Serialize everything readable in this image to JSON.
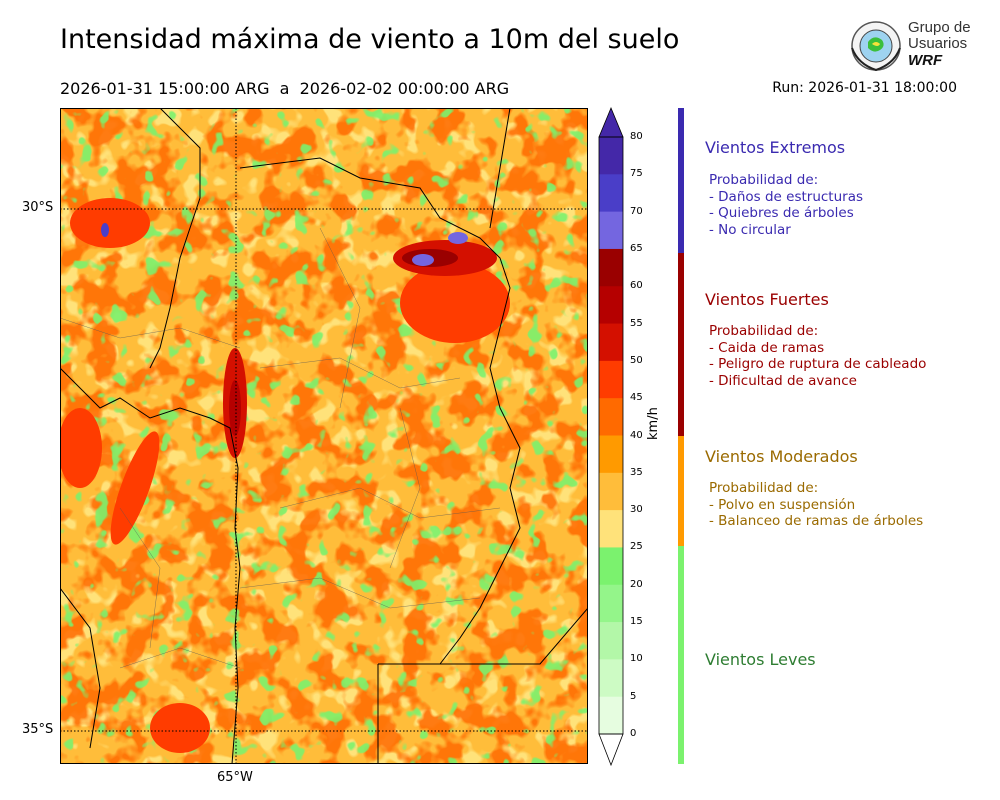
{
  "header": {
    "title": "Intensidad máxima de viento a 10m del suelo",
    "period": "2026-01-31 15:00:00 ARG  a  2026-02-02 00:00:00 ARG",
    "run": "Run: 2026-01-31 18:00:00"
  },
  "logo": {
    "line1": "Grupo de",
    "line2": "Usuarios",
    "line3": "WRF"
  },
  "map": {
    "lat_labels": [
      "30°S",
      "35°S"
    ],
    "lon_labels": [
      "65°W"
    ]
  },
  "colorbar": {
    "unit": "km/h",
    "ticks": [
      "80",
      "75",
      "70",
      "65",
      "60",
      "55",
      "50",
      "45",
      "40",
      "35",
      "30",
      "25",
      "20",
      "15",
      "10",
      "5",
      "0"
    ],
    "colors": [
      "#4428a8",
      "#4a3ec8",
      "#7466e0",
      "#9a0000",
      "#b50000",
      "#d41000",
      "#ff3c00",
      "#ff6a00",
      "#ff9a00",
      "#ffbd3a",
      "#ffe27a",
      "#7bf26e",
      "#94f58a",
      "#b3f7a8",
      "#cdfbc4",
      "#e6fde0"
    ]
  },
  "categories": [
    {
      "title": "Vientos Extremos",
      "color": "#3a2ab0",
      "lines": [
        "Probabilidad de:",
        "- Daños de estructuras",
        "- Quiebres de árboles",
        "- No circular"
      ]
    },
    {
      "title": "Vientos Fuertes",
      "color": "#9a0000",
      "lines": [
        "Probabilidad de:",
        "- Caida de ramas",
        "- Peligro de ruptura de cableado",
        "- Dificultad de avance"
      ]
    },
    {
      "title": "Vientos Moderados",
      "color": "#ff9a00",
      "text_color": "#9a6a00",
      "lines": [
        "Probabilidad de:",
        "- Polvo en suspensión",
        "- Balanceo de ramas de árboles"
      ]
    },
    {
      "title": "Vientos Leves",
      "color": "#7bf26e",
      "text_color": "#2e7d32",
      "lines": []
    }
  ]
}
